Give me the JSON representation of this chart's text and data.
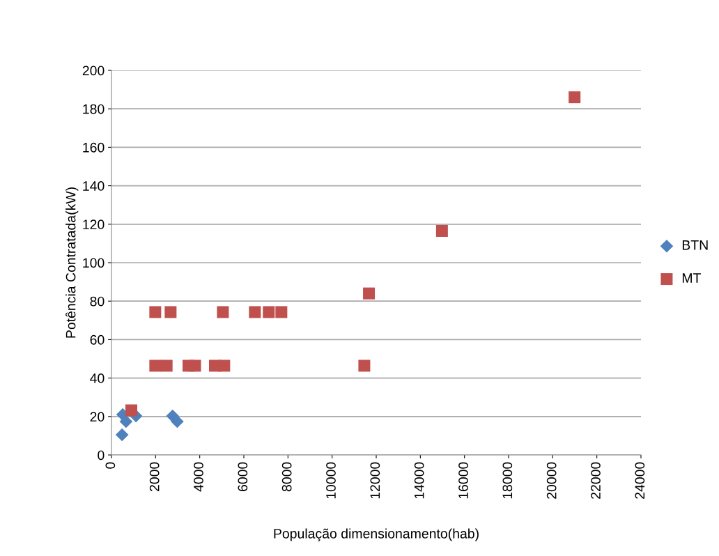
{
  "chart_data": {
    "type": "scatter",
    "xlabel": "População dimensionamento(hab)",
    "ylabel": "Potência Contratada(kW)",
    "xlim": [
      0,
      24000
    ],
    "xticks": [
      0,
      2000,
      4000,
      6000,
      8000,
      10000,
      12000,
      14000,
      16000,
      18000,
      20000,
      22000,
      24000
    ],
    "ylim": [
      0,
      200
    ],
    "yticks": [
      0,
      20,
      40,
      60,
      80,
      100,
      120,
      140,
      160,
      180,
      200
    ],
    "grid": "y",
    "legend": "right",
    "series": [
      {
        "name": "BTN",
        "color": "#4f81bd",
        "marker": "diamond",
        "x": [
          510,
          660,
          1110,
          480,
          2770,
          2980
        ],
        "values": [
          21,
          17.4,
          20.3,
          10.5,
          20.3,
          17.4
        ]
      },
      {
        "name": "MT",
        "color": "#c0504d",
        "marker": "square",
        "x": [
          900,
          1985,
          2680,
          5050,
          6500,
          7130,
          7700,
          1985,
          2500,
          3490,
          3790,
          4690,
          5110,
          11460,
          11670,
          14980,
          20990
        ],
        "values": [
          23.2,
          74.3,
          74.3,
          74.3,
          74.3,
          74.3,
          74.3,
          46.4,
          46.4,
          46.4,
          46.4,
          46.4,
          46.4,
          46.4,
          84,
          116.5,
          186
        ]
      }
    ]
  }
}
